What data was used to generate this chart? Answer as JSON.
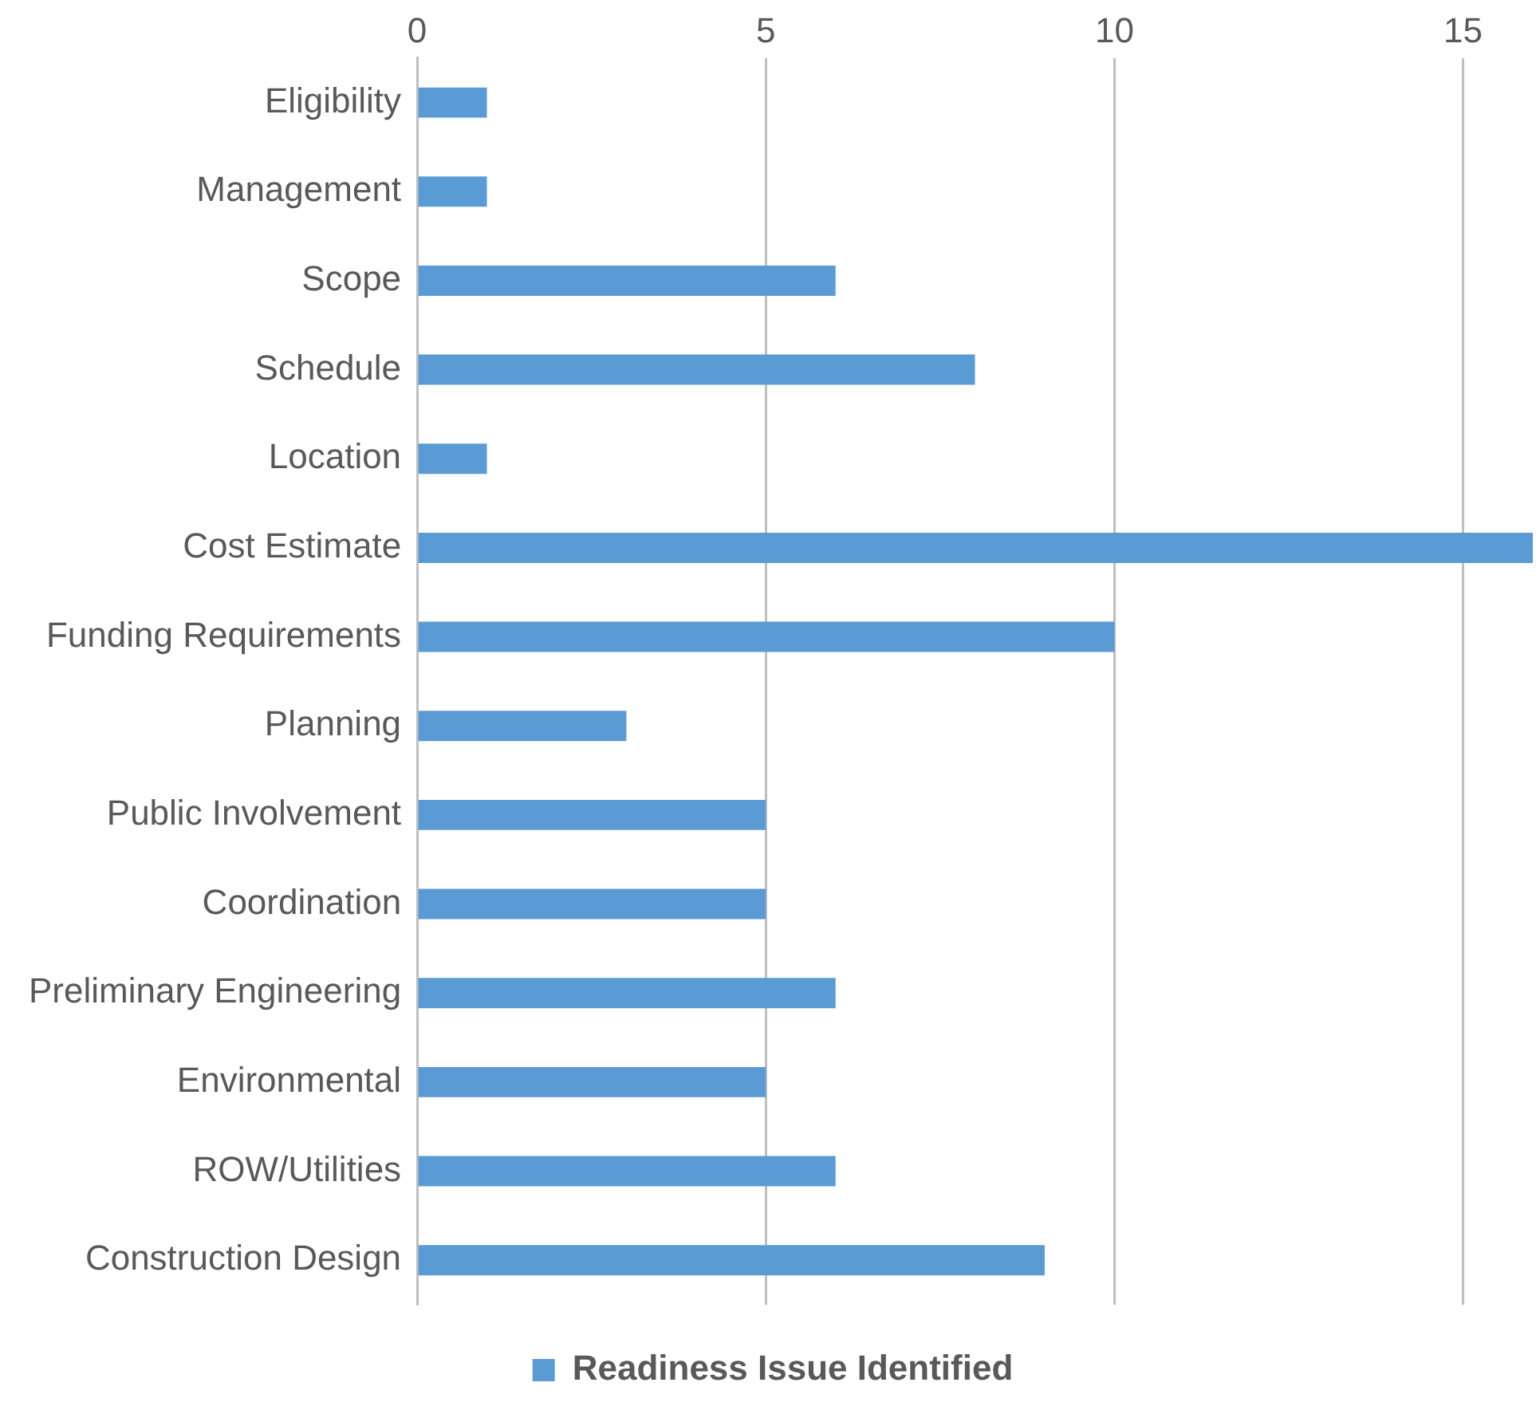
{
  "chart_data": {
    "type": "bar",
    "orientation": "horizontal",
    "categories": [
      "Eligibility",
      "Management",
      "Scope",
      "Schedule",
      "Location",
      "Cost Estimate",
      "Funding Requirements",
      "Planning",
      "Public Involvement",
      "Coordination",
      "Preliminary Engineering",
      "Environmental",
      "ROW/Utilities",
      "Construction Design"
    ],
    "series": [
      {
        "name": "Readiness Issue Identified",
        "color": "#5b9bd5",
        "values": [
          1,
          1,
          6,
          8,
          1,
          16,
          10,
          3,
          5,
          5,
          6,
          5,
          6,
          9
        ]
      }
    ],
    "xlim": [
      0,
      16
    ],
    "xticks": [
      0,
      5,
      10,
      15
    ],
    "grid": "x",
    "legend": "bottom"
  }
}
